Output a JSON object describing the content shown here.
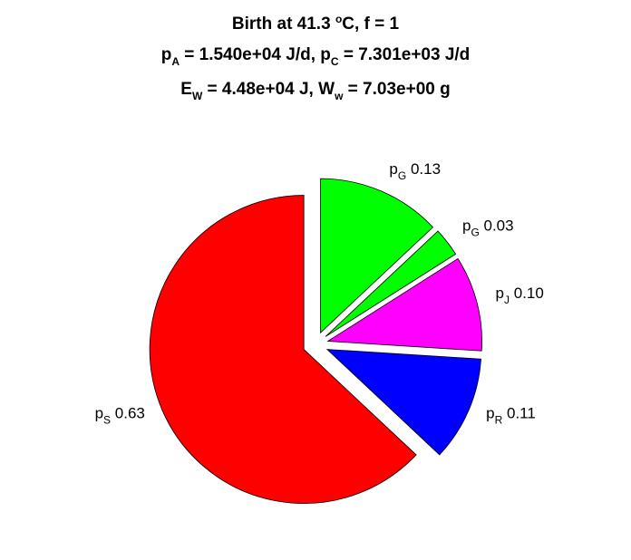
{
  "chart_data": {
    "type": "pie",
    "title": {
      "line1": {
        "pre": "Birth at 41.3 ",
        "sup": "o",
        "post": "C, f = 1"
      },
      "line2": {
        "a": "p",
        "a_sub": "A",
        "a_val": " = 1.540e+04 J/d, ",
        "b": "p",
        "b_sub": "C",
        "b_val": " = 7.301e+03 J/d"
      },
      "line3": {
        "a": "E",
        "a_sub": "W",
        "a_val": " = 4.48e+04 J, ",
        "b": "W",
        "b_sub": "w",
        "b_val": " = 7.03e+00 g"
      }
    },
    "slices": [
      {
        "name": "p",
        "sub": "S",
        "value_label": "0.63",
        "value": 0.63,
        "color": "#ff0000"
      },
      {
        "name": "p",
        "sub": "R",
        "value_label": "0.11",
        "value": 0.11,
        "color": "#0000ff"
      },
      {
        "name": "p",
        "sub": "J",
        "value_label": "0.10",
        "value": 0.1,
        "color": "#ff00ff"
      },
      {
        "name": "p",
        "sub": "G",
        "value_label": "0.03",
        "value": 0.03,
        "color": "#00ff00"
      },
      {
        "name": "p",
        "sub": "G",
        "value_label": "0.13",
        "value": 0.13,
        "color": "#00ff00"
      }
    ]
  }
}
